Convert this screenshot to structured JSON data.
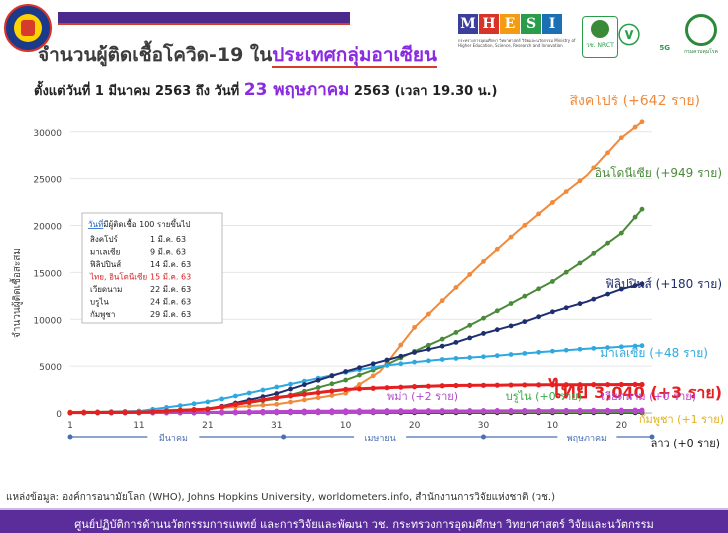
{
  "header": {
    "title_prefix": "จำนวนผู้ติดเชื้อโควิด-19 ใน",
    "title_highlight": "ประเทศกลุ่มอาเซียน",
    "subtitle_a": "ตั้งแต่วันที่ 1 มีนาคม 2563 ถึง วันที่ ",
    "subtitle_date": "23 พฤษภาคม",
    "subtitle_b": " 2563 (เวลา 19.30 น.)"
  },
  "logos": {
    "mhesi_letters": [
      "M",
      "H",
      "E",
      "S",
      "I"
    ],
    "mhesi_colors": [
      "#3b3f9b",
      "#d8332a",
      "#f39c12",
      "#2a9d4b",
      "#1b6fb5"
    ],
    "mhesi_sub": "กระทรวงการอุดมศึกษา วิทยาศาสตร์ วิจัยและนวัตกรรม Ministry of Higher Education, Science, Research and Innovation",
    "nrct": "วช. NRCT",
    "five_g": "5G",
    "moph": "กรมควบคุมโรค"
  },
  "chart_data": {
    "type": "line",
    "ylabel": "จำนวนผู้ติดเชื้อสะสม",
    "ylim": [
      0,
      32000
    ],
    "y_ticks": [
      0,
      5000,
      10000,
      15000,
      20000,
      25000,
      30000
    ],
    "x_range": [
      1,
      84
    ],
    "x_ticks": [
      {
        "x": 1,
        "label": "1"
      },
      {
        "x": 11,
        "label": "11"
      },
      {
        "x": 21,
        "label": "21"
      },
      {
        "x": 31,
        "label": "31"
      },
      {
        "x": 41,
        "label": "10"
      },
      {
        "x": 51,
        "label": "20"
      },
      {
        "x": 61,
        "label": "30"
      },
      {
        "x": 71,
        "label": "10"
      },
      {
        "x": 81,
        "label": "20"
      }
    ],
    "months": [
      {
        "label": "มีนาคม",
        "x": 16
      },
      {
        "label": "เมษายน",
        "x": 46
      },
      {
        "label": "พฤษภาคม",
        "x": 76
      }
    ],
    "month_dividers": [
      32,
      61
    ],
    "series": [
      {
        "name": "สิงคโปร์",
        "label": "สิงคโปร์ (+642 ราย)",
        "color": "#f08a3c",
        "label_color": "#f08a3c",
        "points": [
          [
            1,
            106
          ],
          [
            11,
            200
          ],
          [
            21,
            455
          ],
          [
            31,
            926
          ],
          [
            41,
            2108
          ],
          [
            46,
            4427
          ],
          [
            51,
            9125
          ],
          [
            56,
            12693
          ],
          [
            61,
            16169
          ],
          [
            66,
            19410
          ],
          [
            71,
            22460
          ],
          [
            76,
            25346
          ],
          [
            81,
            29364
          ],
          [
            84,
            31068
          ]
        ]
      },
      {
        "name": "อินโดนีเซีย",
        "label": "อินโดนีเซีย (+949 ราย)",
        "color": "#4a8a3a",
        "label_color": "#4a8a3a",
        "points": [
          [
            1,
            0
          ],
          [
            11,
            69
          ],
          [
            21,
            450
          ],
          [
            31,
            1528
          ],
          [
            41,
            3512
          ],
          [
            46,
            4839
          ],
          [
            51,
            6575
          ],
          [
            56,
            8211
          ],
          [
            61,
            10118
          ],
          [
            66,
            12071
          ],
          [
            71,
            14032
          ],
          [
            76,
            16496
          ],
          [
            81,
            19189
          ],
          [
            84,
            21745
          ]
        ]
      },
      {
        "name": "ฟิลิปปินส์",
        "label": "ฟิลิปปินส์ (+180 ราย)",
        "color": "#1e2e6e",
        "label_color": "#1e2e6e",
        "points": [
          [
            1,
            3
          ],
          [
            11,
            64
          ],
          [
            21,
            380
          ],
          [
            31,
            2084
          ],
          [
            41,
            4428
          ],
          [
            46,
            5453
          ],
          [
            51,
            6459
          ],
          [
            56,
            7294
          ],
          [
            61,
            8488
          ],
          [
            66,
            9485
          ],
          [
            71,
            10794
          ],
          [
            76,
            11876
          ],
          [
            81,
            13221
          ],
          [
            84,
            13777
          ]
        ]
      },
      {
        "name": "มาเลเซีย",
        "label": "มาเลเซีย (+48 ราย)",
        "color": "#2fa8e0",
        "label_color": "#2fa8e0",
        "points": [
          [
            1,
            29
          ],
          [
            11,
            197
          ],
          [
            21,
            1183
          ],
          [
            31,
            2766
          ],
          [
            41,
            4346
          ],
          [
            46,
            4987
          ],
          [
            51,
            5425
          ],
          [
            56,
            5780
          ],
          [
            61,
            6002
          ],
          [
            66,
            6298
          ],
          [
            71,
            6589
          ],
          [
            76,
            6855
          ],
          [
            81,
            7059
          ],
          [
            84,
            7185
          ]
        ]
      },
      {
        "name": "ไทย",
        "label_prefix": "ไทย",
        "label_value": " 3,040 (+3 ราย)",
        "color": "#e62020",
        "label_color": "#e62020",
        "points": [
          [
            1,
            42
          ],
          [
            11,
            75
          ],
          [
            21,
            411
          ],
          [
            31,
            1651
          ],
          [
            41,
            2518
          ],
          [
            46,
            2672
          ],
          [
            51,
            2811
          ],
          [
            56,
            2931
          ],
          [
            61,
            2954
          ],
          [
            66,
            2989
          ],
          [
            71,
            3009
          ],
          [
            76,
            3025
          ],
          [
            81,
            3037
          ],
          [
            84,
            3040
          ]
        ]
      },
      {
        "name": "พม่า",
        "label": "พม่า (+2 ราย)",
        "color": "#b24ac9",
        "label_color": "#b24ac9",
        "points": [
          [
            1,
            0
          ],
          [
            21,
            3
          ],
          [
            31,
            15
          ],
          [
            41,
            28
          ],
          [
            51,
            111
          ],
          [
            61,
            146
          ],
          [
            71,
            178
          ],
          [
            81,
            199
          ],
          [
            84,
            201
          ]
        ]
      },
      {
        "name": "บรูไน",
        "label": "บรูไน (+0 ราย)",
        "color": "#3aa84a",
        "label_color": "#3aa84a",
        "points": [
          [
            1,
            0
          ],
          [
            11,
            11
          ],
          [
            21,
            88
          ],
          [
            31,
            127
          ],
          [
            41,
            136
          ],
          [
            61,
            138
          ],
          [
            71,
            141
          ],
          [
            84,
            141
          ]
        ]
      },
      {
        "name": "เวียดนาม",
        "label": "เวียดนาม (+0 ราย)",
        "color": "#c040d0",
        "label_color": "#c040d0",
        "points": [
          [
            1,
            16
          ],
          [
            11,
            31
          ],
          [
            21,
            113
          ],
          [
            31,
            207
          ],
          [
            41,
            257
          ],
          [
            51,
            268
          ],
          [
            61,
            270
          ],
          [
            71,
            288
          ],
          [
            84,
            324
          ]
        ]
      },
      {
        "name": "กัมพูชา",
        "label": "กัมพูชา (+1 ราย)",
        "color": "#e0b020",
        "label_color": "#e0b020",
        "points": [
          [
            1,
            1
          ],
          [
            11,
            5
          ],
          [
            21,
            87
          ],
          [
            31,
            109
          ],
          [
            41,
            119
          ],
          [
            61,
            122
          ],
          [
            71,
            122
          ],
          [
            84,
            123
          ]
        ]
      },
      {
        "name": "ลาว",
        "label": "ลาว (+0 ราย)",
        "color": "#1a1a1a",
        "label_color": "#1a1a1a",
        "points": [
          [
            1,
            0
          ],
          [
            24,
            0
          ],
          [
            31,
            10
          ],
          [
            41,
            19
          ],
          [
            84,
            19
          ]
        ]
      }
    ],
    "legend_box": {
      "heading_a": "วันที่",
      "heading_b": "มีผู้ติดเชื้อ 100 รายขึ้นไป",
      "rows": [
        {
          "country": "สิงคโปร์",
          "date": "1 มี.ค. 63",
          "highlight": false
        },
        {
          "country": "มาเลเซีย",
          "date": "9 มี.ค. 63",
          "highlight": false
        },
        {
          "country": "ฟิลิปปินส์",
          "date": "14 มี.ค. 63",
          "highlight": false
        },
        {
          "country": "ไทย, อินโดนีเซีย",
          "date": "15 มี.ค. 63",
          "highlight": true
        },
        {
          "country": "เวียดนาม",
          "date": "22 มี.ค. 63",
          "highlight": false
        },
        {
          "country": "บรูไน",
          "date": "24 มี.ค. 63",
          "highlight": false
        },
        {
          "country": "กัมพูชา",
          "date": "29 มี.ค. 63",
          "highlight": false
        }
      ]
    }
  },
  "footer": {
    "source": "แหล่งข้อมูล: องค์การอนามัยโลก (WHO), Johns Hopkins University, worldometers.info, สำนักงานการวิจัยแห่งชาติ (วช.)",
    "org": "ศูนย์ปฏิบัติการด้านนวัตกรรมการแพทย์ และการวิจัยและพัฒนา วช.  กระทรวงการอุดมศึกษา วิทยาศาสตร์ วิจัยและนวัตกรรม"
  }
}
